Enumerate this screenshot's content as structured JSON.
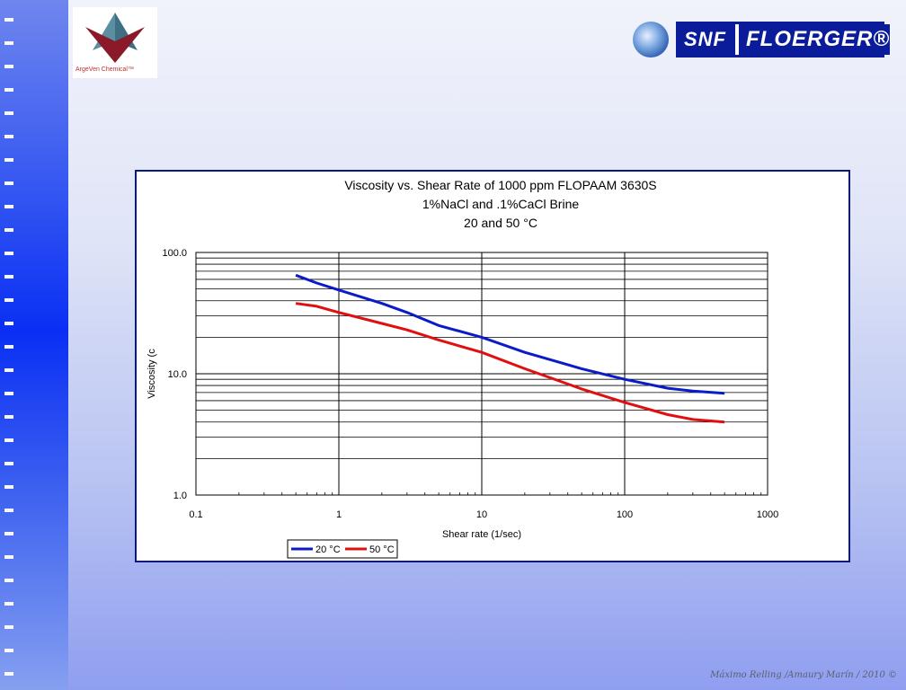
{
  "logos": {
    "left_text": "ArgeVen Chemical™",
    "right_brand_left": "SNF",
    "right_brand_right": "FLOERGER®"
  },
  "footer": "Máximo Relling /Amaury Marín / 2010 ©",
  "chart_data": {
    "type": "line",
    "title": [
      "Viscosity vs. Shear Rate of  1000 ppm FLOPAAM 3630S",
      "1%NaCl and .1%CaCl Brine",
      "20 and 50 °C"
    ],
    "xlabel": "Shear rate  (1/sec)",
    "ylabel": "Viscosity (c",
    "xscale": "log",
    "yscale": "log",
    "xlim": [
      0.1,
      1000
    ],
    "ylim": [
      1.0,
      100.0
    ],
    "xticks": [
      "0.1",
      "1",
      "10",
      "100",
      "1000"
    ],
    "yticks": [
      "1.0",
      "10.0",
      "100.0"
    ],
    "grid": true,
    "legend_position": "bottom",
    "colors": {
      "20": "#0a1cc8",
      "50": "#e01010"
    },
    "series": [
      {
        "name": "20 °C",
        "x": [
          0.5,
          0.7,
          1,
          2,
          3,
          5,
          10,
          20,
          50,
          100,
          200,
          300,
          500
        ],
        "y": [
          65,
          56,
          49,
          38,
          32,
          25,
          20,
          15,
          11,
          9,
          7.6,
          7.2,
          6.9
        ]
      },
      {
        "name": "50 °C",
        "x": [
          0.5,
          0.7,
          1,
          2,
          3,
          5,
          10,
          20,
          50,
          100,
          200,
          300,
          500
        ],
        "y": [
          38,
          36,
          32,
          26,
          23,
          19,
          15,
          11,
          7.5,
          5.8,
          4.6,
          4.2,
          4.0
        ]
      }
    ]
  }
}
